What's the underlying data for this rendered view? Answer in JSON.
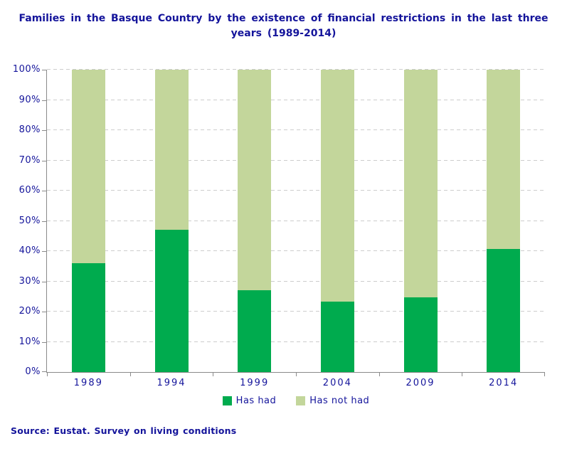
{
  "source_note": "Source: Eustat. Survey on living conditions",
  "chart_data": {
    "type": "bar",
    "stacked": true,
    "percent_stacked": true,
    "title": "Families in the Basque Country by the existence of financial restrictions in the last three years (1989-2014)",
    "categories": [
      "1989",
      "1994",
      "1999",
      "2004",
      "2009",
      "2014"
    ],
    "series": [
      {
        "name": "Has had",
        "color": "#00ab4e",
        "values": [
          36.0,
          47.0,
          27.0,
          23.3,
          24.6,
          40.7
        ]
      },
      {
        "name": "Has not had",
        "color": "#c3d69b",
        "values": [
          64.0,
          53.0,
          73.0,
          76.7,
          75.4,
          59.3
        ]
      }
    ],
    "xlabel": "",
    "ylabel": "",
    "ylim": [
      0,
      100
    ],
    "yticks": [
      "0%",
      "10%",
      "20%",
      "30%",
      "40%",
      "50%",
      "60%",
      "70%",
      "80%",
      "90%",
      "100%"
    ],
    "grid": "horizontal-dashed",
    "legend_position": "bottom-center",
    "colors": {
      "text_navy": "#14149b",
      "axis_gray": "#8a8a8a",
      "gridline_gray": "#cdcdcd",
      "background": "#ffffff"
    }
  }
}
